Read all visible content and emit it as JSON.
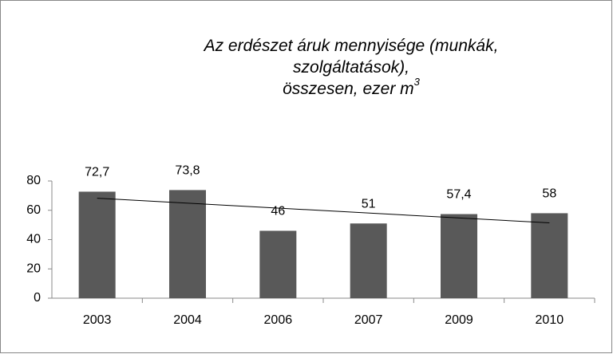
{
  "chart_data": {
    "type": "bar",
    "title": [
      "Az erdészet áruk mennyisége (munkák,",
      "szolgáltatások),",
      "összesen, ezer m"
    ],
    "title_superscript": "3",
    "categories": [
      "2003",
      "2004",
      "2006",
      "2007",
      "2009",
      "2010"
    ],
    "values": [
      72.7,
      73.8,
      46,
      51,
      57.4,
      58
    ],
    "value_labels": [
      "72,7",
      "73,8",
      "46",
      "51",
      "57,4",
      "58"
    ],
    "color": "#595959",
    "ylim": [
      0,
      80
    ],
    "yticks": [
      0,
      20,
      40,
      60,
      80
    ],
    "trendline": "linear"
  }
}
